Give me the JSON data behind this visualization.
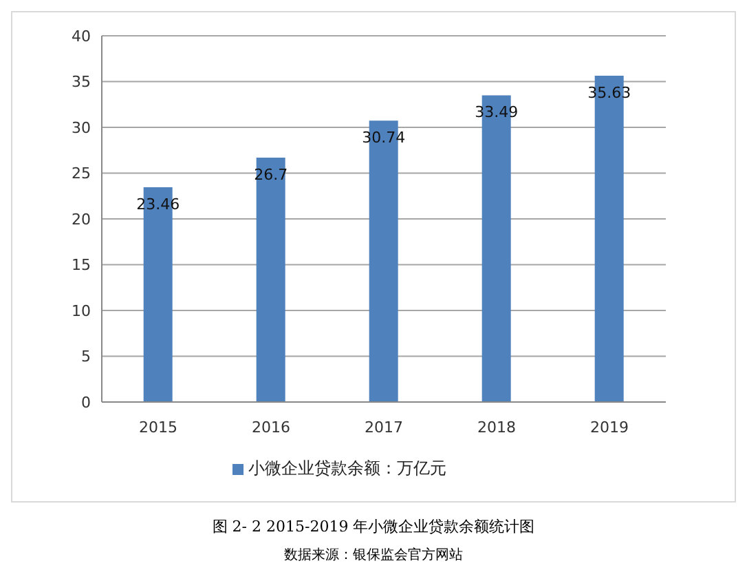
{
  "chart_data": {
    "type": "bar",
    "title": "图 2- 2 2015-2019 年小微企业贷款余额统计图",
    "annotations": [
      "数据来源：银保监会官方网站"
    ],
    "categories": [
      "2015",
      "2016",
      "2017",
      "2018",
      "2019"
    ],
    "series": [
      {
        "name": "小微企业贷款余额：万亿元",
        "color": "#4f81bd",
        "values": [
          23.46,
          26.7,
          30.74,
          33.49,
          35.63
        ]
      }
    ],
    "ylim": [
      0,
      40
    ],
    "yticks": [
      0,
      5,
      10,
      15,
      20,
      25,
      30,
      35,
      40
    ],
    "grid": "y",
    "legend": "bottom",
    "data_labels": true
  }
}
